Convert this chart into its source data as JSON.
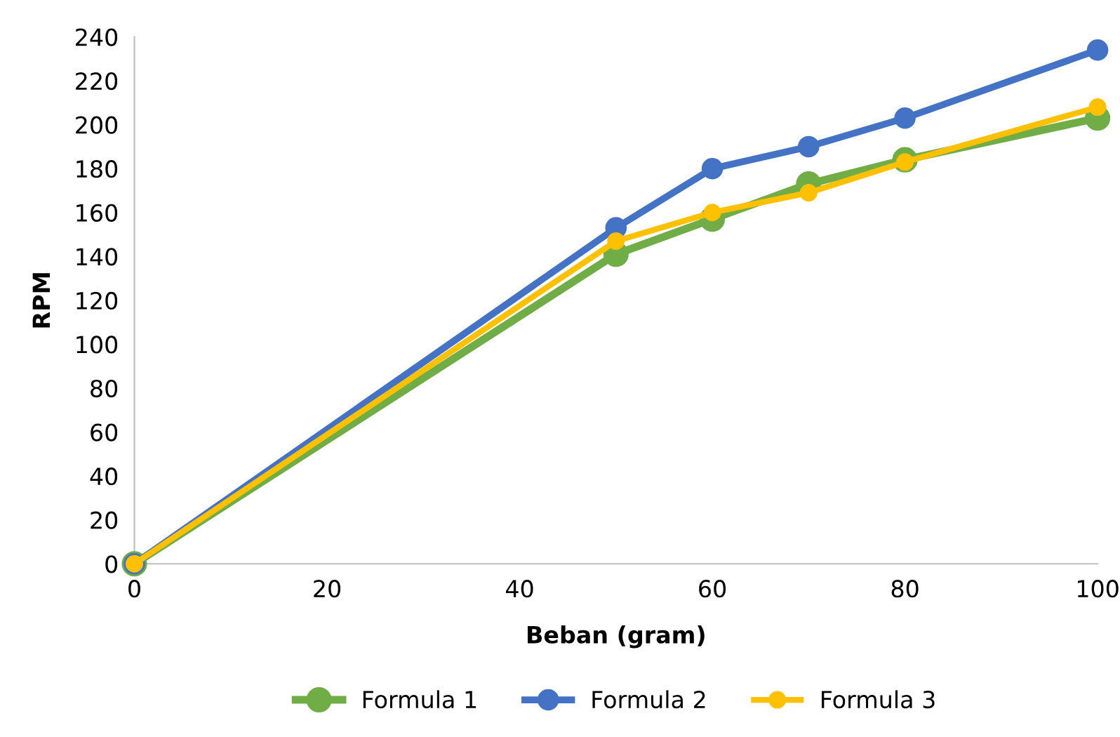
{
  "chart_data": {
    "type": "line",
    "xlabel": "Beban (gram)",
    "ylabel": "RPM",
    "x": [
      0,
      50,
      60,
      70,
      80,
      100
    ],
    "series": [
      {
        "name": "Formula 1",
        "color": "#70ad47",
        "values": [
          0,
          141,
          157,
          173,
          184,
          203
        ]
      },
      {
        "name": "Formula 2",
        "color": "#4472c4",
        "values": [
          0,
          153,
          180,
          190,
          203,
          234
        ]
      },
      {
        "name": "Formula 3",
        "color": "#ffc000",
        "values": [
          0,
          147,
          160,
          169,
          183,
          208
        ]
      }
    ],
    "xlim": [
      0,
      100
    ],
    "xticks": [
      0,
      20,
      40,
      60,
      80,
      100
    ],
    "ylim": [
      0,
      240
    ],
    "yticks": [
      0,
      20,
      40,
      60,
      80,
      100,
      120,
      140,
      160,
      180,
      200,
      220,
      240
    ],
    "grid": false,
    "legend": "bottom",
    "marker": "circle",
    "line_style": "solid"
  }
}
